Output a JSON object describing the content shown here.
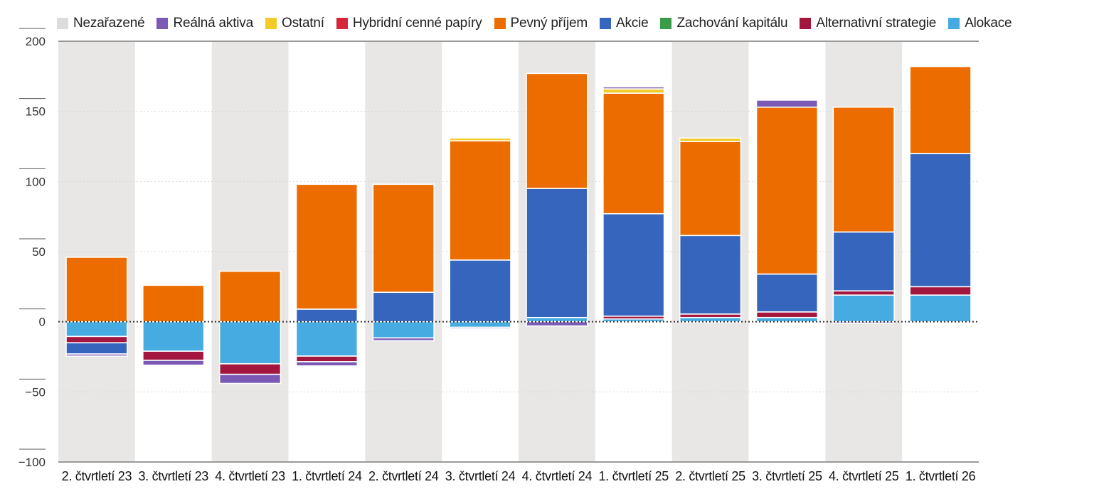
{
  "chart_data": {
    "type": "bar",
    "stacked": true,
    "title": "",
    "xlabel": "",
    "ylabel": "",
    "ylim": [
      -100,
      200
    ],
    "yticks": [
      200,
      150,
      100,
      50,
      0,
      -50,
      -100
    ],
    "ytick_labels": [
      "200",
      "150",
      "100",
      "50",
      "0",
      "−50",
      "−100"
    ],
    "legend_position": "top",
    "grid": true,
    "categories": [
      "2. čtvrtletí 23",
      "3. čtvrtletí 23",
      "4. čtvrtletí 23",
      "1. čtvrtletí 24",
      "2. čtvrtletí 24",
      "3. čtvrtletí 24",
      "4. čtvrtletí 24",
      "1. čtvrtletí 25",
      "2. čtvrtletí 25",
      "3. čtvrtletí 25",
      "4. čtvrtletí 25",
      "1. čtvrtletí 26"
    ],
    "series": [
      {
        "name": "Nezařazené",
        "color": "#dcdcdc",
        "values": [
          0,
          0,
          0,
          0,
          0,
          0,
          0,
          0,
          0,
          0,
          0,
          0
        ]
      },
      {
        "name": "Reálná aktiva",
        "color": "#7b5ab5",
        "values": [
          -1.5,
          -3.5,
          -6.5,
          -3,
          -2,
          -1,
          -3,
          1.5,
          -0.5,
          5,
          -1,
          0
        ]
      },
      {
        "name": "Ostatní",
        "color": "#f2cb28",
        "values": [
          0,
          0,
          0,
          0,
          0,
          2,
          0,
          3,
          2.5,
          0,
          0,
          0
        ]
      },
      {
        "name": "Hybridní cenné papíry",
        "color": "#d6263b",
        "values": [
          0,
          0,
          0,
          0,
          0,
          0,
          0,
          0,
          0,
          0,
          0,
          0
        ]
      },
      {
        "name": "Pevný příjem",
        "color": "#ec6c00",
        "values": [
          46,
          26,
          36,
          89,
          77,
          85,
          82,
          86,
          67,
          119,
          89,
          62
        ]
      },
      {
        "name": "Akcie",
        "color": "#3565bd",
        "values": [
          -8,
          0,
          0,
          9,
          21,
          44,
          92,
          73,
          56,
          27,
          42,
          95
        ]
      },
      {
        "name": "Zachování kapitálu",
        "color": "#3a9c49",
        "values": [
          0,
          0,
          0,
          0,
          0,
          0,
          0,
          0,
          0,
          0,
          0,
          0
        ]
      },
      {
        "name": "Alternativní strategie",
        "color": "#a3173f",
        "values": [
          -4.5,
          -6.5,
          -7.5,
          -4,
          0,
          0,
          0,
          2,
          2.5,
          4,
          3,
          6
        ]
      },
      {
        "name": "Alokace",
        "color": "#45abe1",
        "values": [
          -10.5,
          -21,
          -30,
          -24.5,
          -11.5,
          -4,
          3,
          2,
          3,
          3,
          19,
          19
        ]
      }
    ]
  }
}
